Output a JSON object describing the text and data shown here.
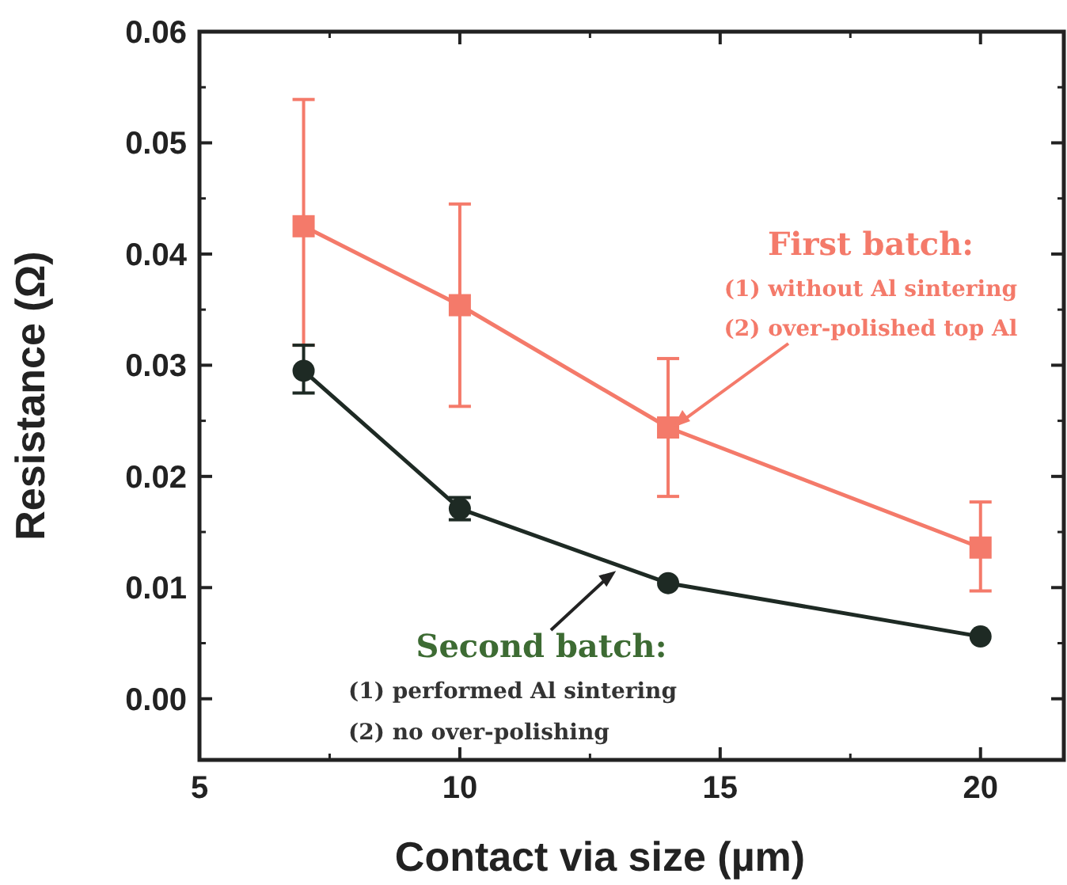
{
  "chart_data": {
    "type": "line",
    "xlabel": "Contact via size (µm)",
    "ylabel": "Resistance (Ω)",
    "xlim": [
      5,
      21.6
    ],
    "xticks": [
      5,
      10,
      15,
      20
    ],
    "ylim": [
      -0.0055,
      0.06
    ],
    "yticks": [
      {
        "value": 0,
        "label": "0.00"
      },
      {
        "value": 0.01,
        "label": "0.01"
      },
      {
        "value": 0.02,
        "label": "0.02"
      },
      {
        "value": 0.03,
        "label": "0.03"
      },
      {
        "value": 0.04,
        "label": "0.04"
      },
      {
        "value": 0.05,
        "label": "0.05"
      },
      {
        "value": 0.06,
        "label": "0.06"
      }
    ],
    "grid": false,
    "line_style": "solid",
    "series": [
      {
        "color": "#f47a6a",
        "marker": "square",
        "x": [
          7,
          10,
          14,
          20
        ],
        "values": [
          0.0425,
          0.0354,
          0.0244,
          0.0136
        ],
        "errors": [
          [
            0.0318,
            0.0539
          ],
          [
            0.0263,
            0.0445
          ],
          [
            0.0182,
            0.0306
          ],
          [
            0.0097,
            0.0177
          ]
        ]
      },
      {
        "color": "#1e2a24",
        "marker": "circle",
        "x": [
          7,
          10,
          14,
          20
        ],
        "values": [
          0.0295,
          0.0171,
          0.0104,
          0.0056
        ],
        "errors": [
          [
            0.0275,
            0.0318
          ],
          [
            0.0161,
            0.0181
          ],
          null,
          null
        ]
      }
    ],
    "annotations": [
      "First batch:",
      "(1) without Al sintering",
      {
        "text": "(2) over-polished top Al",
        "x": 14,
        "y": 0.0244
      },
      {
        "text": "Second batch:",
        "x": 13,
        "y": 0.0115
      },
      "(1) performed Al sintering",
      "(2) no over-polishing"
    ]
  }
}
